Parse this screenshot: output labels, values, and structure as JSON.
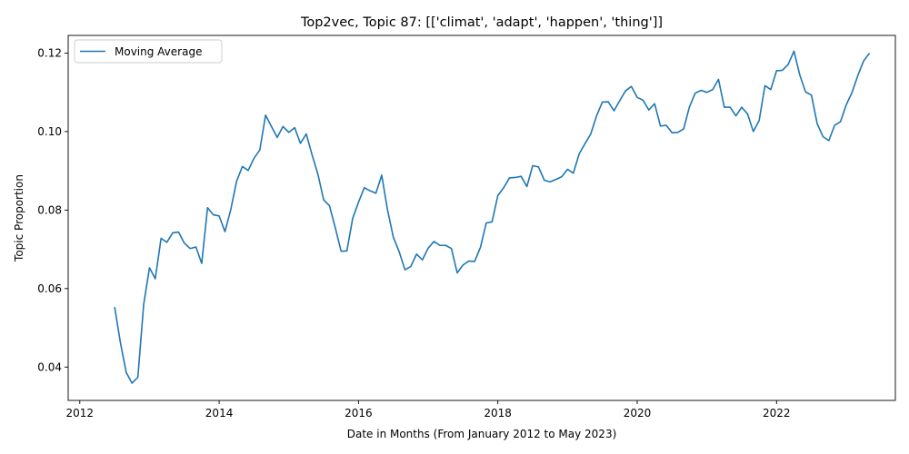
{
  "chart_data": {
    "type": "line",
    "title": "Top2vec, Topic 87: [['climat', 'adapt', 'happen', 'thing']]",
    "xlabel": "Date in Months (From January 2012 to May 2023)",
    "ylabel": "Topic Proportion",
    "x_ticks": [
      "2012",
      "2014",
      "2016",
      "2018",
      "2020",
      "2022"
    ],
    "y_ticks": [
      "0.04",
      "0.06",
      "0.08",
      "0.10",
      "0.12"
    ],
    "xlim": [
      "2011-11-01",
      "2023-09-15"
    ],
    "ylim": [
      0.0315,
      0.1245
    ],
    "grid": false,
    "legend_position": "top-left",
    "colors": {
      "series": "#1f77b4"
    },
    "series": [
      {
        "name": "Moving Average",
        "x": [
          "2012-07",
          "2012-08",
          "2012-09",
          "2012-10",
          "2012-11",
          "2012-12",
          "2013-01",
          "2013-02",
          "2013-03",
          "2013-04",
          "2013-05",
          "2013-06",
          "2013-07",
          "2013-08",
          "2013-09",
          "2013-10",
          "2013-11",
          "2013-12",
          "2014-01",
          "2014-02",
          "2014-03",
          "2014-04",
          "2014-05",
          "2014-06",
          "2014-07",
          "2014-08",
          "2014-09",
          "2014-10",
          "2014-11",
          "2014-12",
          "2015-01",
          "2015-02",
          "2015-03",
          "2015-04",
          "2015-05",
          "2015-06",
          "2015-07",
          "2015-08",
          "2015-09",
          "2015-10",
          "2015-11",
          "2015-12",
          "2016-01",
          "2016-02",
          "2016-03",
          "2016-04",
          "2016-05",
          "2016-06",
          "2016-07",
          "2016-08",
          "2016-09",
          "2016-10",
          "2016-11",
          "2016-12",
          "2017-01",
          "2017-02",
          "2017-03",
          "2017-04",
          "2017-05",
          "2017-06",
          "2017-07",
          "2017-08",
          "2017-09",
          "2017-10",
          "2017-11",
          "2017-12",
          "2018-01",
          "2018-02",
          "2018-03",
          "2018-04",
          "2018-05",
          "2018-06",
          "2018-07",
          "2018-08",
          "2018-09",
          "2018-10",
          "2018-11",
          "2018-12",
          "2019-01",
          "2019-02",
          "2019-03",
          "2019-04",
          "2019-05",
          "2019-06",
          "2019-07",
          "2019-08",
          "2019-09",
          "2019-10",
          "2019-11",
          "2019-12",
          "2020-01",
          "2020-02",
          "2020-03",
          "2020-04",
          "2020-05",
          "2020-06",
          "2020-07",
          "2020-08",
          "2020-09",
          "2020-10",
          "2020-11",
          "2020-12",
          "2021-01",
          "2021-02",
          "2021-03",
          "2021-04",
          "2021-05",
          "2021-06",
          "2021-07",
          "2021-08",
          "2021-09",
          "2021-10",
          "2021-11",
          "2021-12",
          "2022-01",
          "2022-02",
          "2022-03",
          "2022-04",
          "2022-05",
          "2022-06",
          "2022-07",
          "2022-08",
          "2022-09",
          "2022-10",
          "2022-11",
          "2022-12",
          "2023-01",
          "2023-02",
          "2023-03",
          "2023-04",
          "2023-05"
        ],
        "values": [
          0.0553,
          0.0462,
          0.0386,
          0.0359,
          0.0374,
          0.0559,
          0.0653,
          0.0625,
          0.0728,
          0.0718,
          0.0742,
          0.0744,
          0.0716,
          0.0702,
          0.0706,
          0.0664,
          0.0806,
          0.0788,
          0.0785,
          0.0745,
          0.0801,
          0.0873,
          0.0911,
          0.0901,
          0.0932,
          0.0953,
          0.1042,
          0.1013,
          0.0985,
          0.1013,
          0.0998,
          0.101,
          0.097,
          0.0994,
          0.0941,
          0.0892,
          0.0826,
          0.0811,
          0.0755,
          0.0695,
          0.0696,
          0.0779,
          0.082,
          0.0857,
          0.0849,
          0.0843,
          0.0889,
          0.08,
          0.0731,
          0.0694,
          0.0648,
          0.0656,
          0.0688,
          0.0673,
          0.0703,
          0.072,
          0.071,
          0.071,
          0.0702,
          0.064,
          0.066,
          0.067,
          0.0669,
          0.0705,
          0.0767,
          0.077,
          0.0837,
          0.0857,
          0.0882,
          0.0883,
          0.0886,
          0.086,
          0.0913,
          0.091,
          0.0876,
          0.0872,
          0.0878,
          0.0885,
          0.0904,
          0.0894,
          0.0943,
          0.0969,
          0.0994,
          0.104,
          0.1075,
          0.1076,
          0.1053,
          0.1079,
          0.1104,
          0.1115,
          0.1087,
          0.108,
          0.1055,
          0.1071,
          0.1014,
          0.1016,
          0.0997,
          0.0998,
          0.1007,
          0.1063,
          0.1098,
          0.1105,
          0.11,
          0.1107,
          0.1133,
          0.1062,
          0.1062,
          0.104,
          0.1062,
          0.1045,
          0.1,
          0.1028,
          0.1117,
          0.1107,
          0.1155,
          0.1156,
          0.1171,
          0.1205,
          0.1144,
          0.1101,
          0.1093,
          0.102,
          0.0987,
          0.0977,
          0.1016,
          0.1025,
          0.1068,
          0.11,
          0.1143,
          0.118,
          0.12
        ]
      }
    ]
  }
}
